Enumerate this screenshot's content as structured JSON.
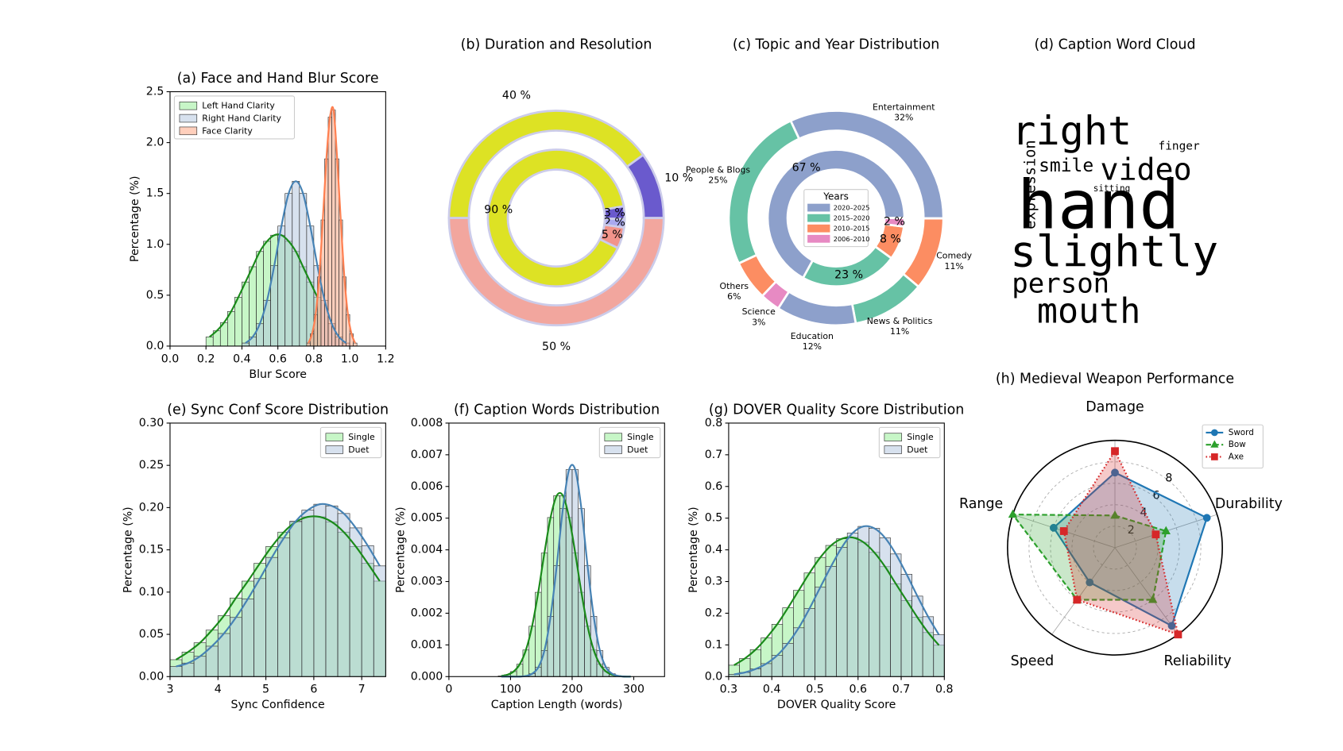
{
  "chart_data": [
    {
      "type": "hist",
      "title": "(a) Face and Hand Blur Score",
      "xlabel": "Blur Score",
      "ylabel": "Percentage (%)",
      "xlim": [
        0,
        1.2
      ],
      "ylim": [
        0,
        2.5
      ],
      "xticks": [
        {
          "value": 0,
          "label": "0.0"
        },
        0.2,
        0.4,
        0.6,
        0.8,
        {
          "value": 1,
          "label": "1.0"
        },
        1.2
      ],
      "yticks": [
        {
          "value": 0,
          "label": "0.0"
        },
        0.5,
        {
          "value": 1,
          "label": "1.0"
        },
        1.5,
        {
          "value": 2,
          "label": "2.0"
        },
        2.5
      ],
      "legend": "upper left",
      "series": [
        {
          "name": "Left Hand Clarity",
          "color": "#90ee90",
          "line_color": "#1a8a1a",
          "bins": [
            0.2,
            0.24,
            0.28,
            0.32,
            0.36,
            0.4,
            0.44,
            0.48,
            0.52,
            0.56,
            0.6,
            0.64,
            0.68,
            0.72,
            0.76,
            0.8,
            0.84
          ],
          "values": [
            0.09,
            0.15,
            0.23,
            0.34,
            0.48,
            0.63,
            0.78,
            0.93,
            1.03,
            1.09,
            1.09,
            1.03,
            0.93,
            0.78,
            0.63,
            0.48
          ]
        },
        {
          "name": "Right Hand Clarity",
          "color": "#b0c4de",
          "line_color": "#4682b4",
          "bins": [
            0.4,
            0.44,
            0.48,
            0.52,
            0.56,
            0.6,
            0.64,
            0.68,
            0.72,
            0.76,
            0.8,
            0.84,
            0.88,
            0.92,
            0.96,
            1.0
          ],
          "values": [
            0.03,
            0.09,
            0.22,
            0.45,
            0.79,
            1.18,
            1.5,
            1.62,
            1.5,
            1.18,
            0.79,
            0.45,
            0.22,
            0.09,
            0.03
          ]
        },
        {
          "name": "Face Clarity",
          "color": "#ffa07a",
          "line_color": "#ff7f50",
          "bins": [
            0.76,
            0.78,
            0.8,
            0.82,
            0.84,
            0.86,
            0.88,
            0.9,
            0.92,
            0.94,
            0.96,
            0.98,
            1.0,
            1.02,
            1.04
          ],
          "values": [
            0.03,
            0.12,
            0.31,
            0.68,
            1.24,
            1.84,
            2.25,
            2.32,
            1.84,
            1.24,
            0.68,
            0.31,
            0.12,
            0.03
          ]
        }
      ]
    },
    {
      "type": "donut",
      "title": "(b) Duration and Resolution",
      "edgecolor": "#ccccea",
      "rings": [
        {
          "values": [
            40,
            10,
            50
          ],
          "value_labels": [
            "40 %",
            "10 %",
            "50 %"
          ],
          "colors": [
            "#dde224",
            "#6a5acd",
            "#f2a69e"
          ],
          "startangle": 180,
          "direction": "clockwise"
        },
        {
          "values": [
            90,
            3,
            2,
            5
          ],
          "value_labels": [
            "90 %",
            "3 %",
            "2 %",
            "5 %"
          ],
          "colors": [
            "#dde224",
            "#6a5acd",
            "#a9a9f0",
            "#f2948b"
          ],
          "startangle": -26,
          "direction": "clockwise"
        }
      ]
    },
    {
      "type": "donut",
      "title": "(c) Topic and Year Distribution",
      "edgecolor": "#ffffff",
      "legend_title": "Years",
      "rings": [
        {
          "labels": [
            "Entertainment",
            "Comedy",
            "News & Politics",
            "Education",
            "Science",
            "Others",
            "People & Blogs"
          ],
          "values": [
            32,
            11,
            11,
            12,
            3,
            6,
            25
          ],
          "value_labels": [
            "32%",
            "11%",
            "11%",
            "12%",
            "3%",
            "6%",
            "25%"
          ],
          "colors": [
            "#8da0cb",
            "#fc8d62",
            "#66c2a5",
            "#8da0cb",
            "#e78ac3",
            "#fc8d62",
            "#66c2a5"
          ],
          "startangle": 115,
          "direction": "clockwise"
        },
        {
          "labels": [
            "2020–2025",
            "2015–2020",
            "2010–2015",
            "2006–2010"
          ],
          "values": [
            67,
            23,
            8,
            2
          ],
          "value_labels": [
            "67 %",
            "23 %",
            "8 %",
            "2 %"
          ],
          "colors": [
            "#8da0cb",
            "#66c2a5",
            "#fc8d62",
            "#e78ac3"
          ],
          "startangle": 0,
          "direction": "counterclockwise"
        }
      ]
    },
    {
      "type": "wordcloud",
      "title": "(d) Caption Word Cloud",
      "words": [
        "hand",
        "slightly",
        "right",
        "mouth",
        "video",
        "person",
        "smile",
        "expression",
        "finger",
        "sitting"
      ],
      "weights": [
        1.0,
        0.64,
        0.59,
        0.51,
        0.45,
        0.4,
        0.27,
        0.22,
        0.17,
        0.13
      ],
      "colors": [
        "#3b528b",
        "#21a585",
        "#dde318",
        "#c2df23",
        "#b5de2b",
        "#3e4a89",
        "#2a9d8e",
        "#3b528b",
        "#482878",
        "#27ad81"
      ],
      "orientations": [
        "horizontal",
        "horizontal",
        "horizontal",
        "horizontal",
        "horizontal",
        "horizontal",
        "horizontal",
        "vertical",
        "horizontal",
        "horizontal"
      ]
    },
    {
      "type": "hist",
      "title": "(e) Sync Conf Score Distribution",
      "xlabel": "Sync Confidence",
      "ylabel": "Percentage (%)",
      "xlim": [
        3,
        7.5
      ],
      "ylim": [
        0,
        0.3
      ],
      "xticks": [
        3,
        4,
        5,
        6,
        7
      ],
      "yticks": [
        {
          "value": 0,
          "label": "0.00"
        },
        0.05,
        {
          "value": 0.1,
          "label": "0.10"
        },
        0.15,
        {
          "value": 0.2,
          "label": "0.20"
        },
        0.25,
        {
          "value": 0.3,
          "label": "0.30"
        }
      ],
      "legend": "upper right",
      "series": [
        {
          "name": "Single",
          "color": "#90ee90",
          "line_color": "#1a8a1a",
          "bins": [
            3,
            3.25,
            3.5,
            3.75,
            4,
            4.25,
            4.5,
            4.75,
            5,
            5.25,
            5.5,
            5.75,
            6,
            6.25,
            6.5,
            6.75,
            7,
            7.25,
            7.5
          ],
          "values": [
            0.02,
            0.029,
            0.04,
            0.055,
            0.072,
            0.093,
            0.113,
            0.134,
            0.154,
            0.171,
            0.183,
            0.189,
            0.189,
            0.183,
            0.171,
            0.154,
            0.134,
            0.113
          ]
        },
        {
          "name": "Duet",
          "color": "#b0c4de",
          "line_color": "#4682b4",
          "bins": [
            3,
            3.25,
            3.5,
            3.75,
            4,
            4.25,
            4.5,
            4.75,
            5,
            5.25,
            5.5,
            5.75,
            6,
            6.25,
            6.5,
            6.75,
            7,
            7.25,
            7.5
          ],
          "values": [
            0.012,
            0.016,
            0.024,
            0.036,
            0.051,
            0.07,
            0.092,
            0.116,
            0.141,
            0.164,
            0.184,
            0.197,
            0.204,
            0.202,
            0.193,
            0.176,
            0.155,
            0.131
          ]
        }
      ]
    },
    {
      "type": "hist",
      "title": "(f) Caption Words Distribution",
      "xlabel": "Caption Length (words)",
      "ylabel": "Percentage (%)",
      "xlim": [
        0,
        350
      ],
      "ylim": [
        0,
        0.008
      ],
      "xticks": [
        0,
        100,
        200,
        300
      ],
      "yticks": [
        {
          "value": 0,
          "label": "0.000"
        },
        0.001,
        0.002,
        0.003,
        0.004,
        0.005,
        0.006,
        0.007,
        0.008
      ],
      "legend": "upper right",
      "series": [
        {
          "name": "Single",
          "color": "#90ee90",
          "line_color": "#1a8a1a",
          "bins": [
            80,
            90,
            100,
            110,
            120,
            130,
            140,
            150,
            160,
            170,
            180,
            190,
            200,
            210,
            220,
            230,
            240,
            250,
            260,
            270,
            280,
            290,
            300
          ],
          "values": [
            2e-05,
            6e-05,
            0.00016,
            0.00039,
            0.00084,
            0.00159,
            0.00266,
            0.0039,
            0.00502,
            0.00571,
            0.00571,
            0.00502,
            0.0039,
            0.00266,
            0.00159,
            0.00084,
            0.00039,
            0.00016,
            6e-05,
            2e-05,
            0,
            0
          ]
        },
        {
          "name": "Duet",
          "color": "#b0c4de",
          "line_color": "#4682b4",
          "bins": [
            80,
            90,
            100,
            110,
            120,
            130,
            140,
            150,
            160,
            170,
            180,
            190,
            200,
            210,
            220,
            230,
            240,
            250,
            260,
            270,
            280,
            290,
            300
          ],
          "values": [
            0,
            0,
            0,
            0,
            2e-05,
            9e-05,
            0.00029,
            0.00082,
            0.0019,
            0.0035,
            0.0053,
            0.00653,
            0.00653,
            0.0053,
            0.0035,
            0.0019,
            0.00082,
            0.00029,
            9e-05,
            2e-05,
            0,
            0
          ]
        }
      ]
    },
    {
      "type": "hist",
      "title": "(g) DOVER Quality Score Distribution",
      "xlabel": "DOVER Quality Score",
      "ylabel": "Percentage (%)",
      "xlim": [
        0.3,
        0.8
      ],
      "ylim": [
        0,
        0.8
      ],
      "xticks": [
        0.3,
        0.4,
        0.5,
        0.6,
        0.7,
        0.8
      ],
      "yticks": [
        {
          "value": 0,
          "label": "0.0"
        },
        0.1,
        0.2,
        0.3,
        0.4,
        0.5,
        0.6,
        0.7,
        0.8
      ],
      "legend": "upper right",
      "series": [
        {
          "name": "Single",
          "color": "#90ee90",
          "line_color": "#1a8a1a",
          "bins": [
            0.3,
            0.325,
            0.35,
            0.375,
            0.4,
            0.425,
            0.45,
            0.475,
            0.5,
            0.525,
            0.55,
            0.575,
            0.6,
            0.625,
            0.65,
            0.675,
            0.7,
            0.725,
            0.75,
            0.775,
            0.8
          ],
          "values": [
            0.036,
            0.057,
            0.085,
            0.122,
            0.165,
            0.217,
            0.272,
            0.327,
            0.376,
            0.414,
            0.435,
            0.439,
            0.424,
            0.392,
            0.347,
            0.293,
            0.24,
            0.187,
            0.139,
            0.099
          ]
        },
        {
          "name": "Duet",
          "color": "#b0c4de",
          "line_color": "#4682b4",
          "bins": [
            0.3,
            0.325,
            0.35,
            0.375,
            0.4,
            0.425,
            0.45,
            0.475,
            0.5,
            0.525,
            0.55,
            0.575,
            0.6,
            0.625,
            0.65,
            0.675,
            0.7,
            0.725,
            0.75,
            0.775,
            0.8
          ],
          "values": [
            0.007,
            0.013,
            0.024,
            0.041,
            0.067,
            0.105,
            0.154,
            0.215,
            0.282,
            0.348,
            0.408,
            0.453,
            0.474,
            0.468,
            0.438,
            0.387,
            0.323,
            0.254,
            0.189,
            0.132
          ]
        }
      ]
    },
    {
      "type": "radar",
      "title": "(h) Medieval Weapon Performance",
      "categories": [
        "Damage",
        "Durability",
        "Reliability",
        "Speed",
        "Range"
      ],
      "rlim": [
        0,
        10
      ],
      "rticks": [
        2,
        4,
        6,
        8
      ],
      "legend": "upper right",
      "series": [
        {
          "name": "Sword",
          "color": "#1f77b4",
          "marker": "circle",
          "linestyle": "solid",
          "values": [
            7,
            9,
            9,
            4,
            6
          ]
        },
        {
          "name": "Bow",
          "color": "#2ca02c",
          "marker": "triangle",
          "linestyle": "dashed",
          "values": [
            3,
            5,
            6,
            6,
            10
          ]
        },
        {
          "name": "Axe",
          "color": "#d62728",
          "marker": "square",
          "linestyle": "dotted",
          "values": [
            9,
            4,
            10,
            6,
            5
          ]
        }
      ]
    }
  ]
}
